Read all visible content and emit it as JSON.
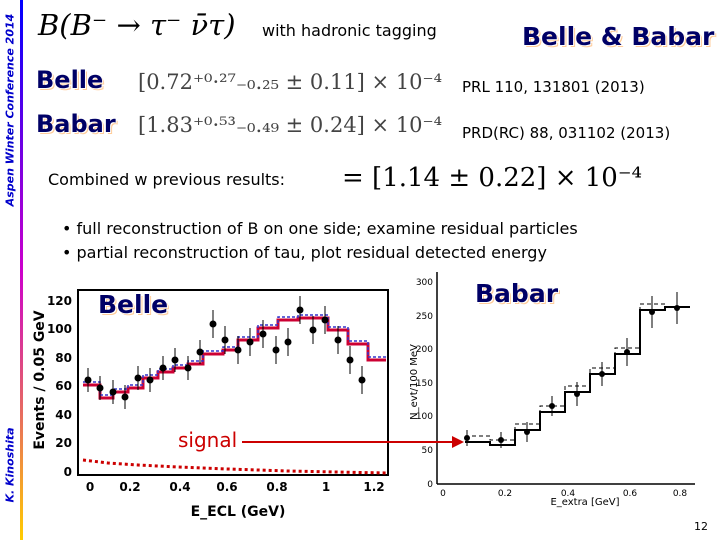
{
  "sidebar": {
    "top_text": "Aspen Winter Conference 2014",
    "bottom_text": "K. Kinoshita"
  },
  "header": {
    "math": "B(B⁻ → τ⁻ ν̄τ)",
    "subtitle": "with hadronic tagging",
    "logo": "Belle & Babar"
  },
  "results": [
    {
      "experiment": "Belle",
      "value": "[0.72⁺⁰·²⁷₋₀.₂₅ ± 0.11] × 10⁻⁴",
      "reference": "PRL 110, 131801 (2013)"
    },
    {
      "experiment": "Babar",
      "value": "[1.83⁺⁰·⁵³₋₀.₄₉ ± 0.24] × 10⁻⁴",
      "reference": "PRD(RC) 88, 031102 (2013)"
    }
  ],
  "combined": {
    "label": "Combined w previous results:",
    "value": "= [1.14 ± 0.22] × 10⁻⁴"
  },
  "bullets": [
    "• full reconstruction of B on one side; examine residual particles",
    "• partial reconstruction of tau, plot residual detected energy"
  ],
  "left_plot": {
    "logo": "Belle",
    "ylabel": "Events / 0.05 GeV",
    "xlabel": "E_ECL (GeV)",
    "yticks": [
      "0",
      "20",
      "40",
      "60",
      "80",
      "100",
      "120"
    ],
    "xticks": [
      "0",
      "0.2",
      "0.4",
      "0.6",
      "0.8",
      "1",
      "1.2"
    ]
  },
  "right_plot": {
    "logo": "Babar",
    "ylabel": "N_evt/100 MeV",
    "xlabel": "E_extra [GeV]",
    "yticks": [
      "0",
      "50",
      "100",
      "150",
      "200",
      "250",
      "300"
    ],
    "xticks": [
      "0",
      "0.2",
      "0.4",
      "0.6",
      "0.8"
    ]
  },
  "annotation": {
    "text": "signal"
  },
  "footer": {
    "page": "12"
  }
}
